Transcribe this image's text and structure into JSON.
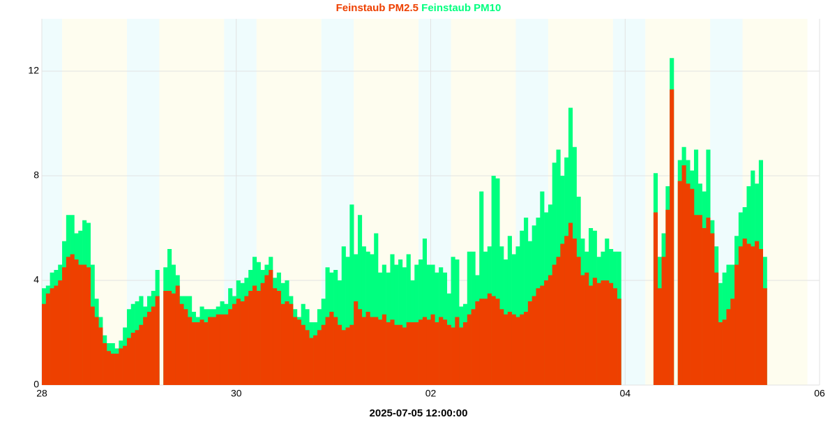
{
  "chart_data": {
    "type": "bar",
    "xlabel": "2025-07-05 12:00:00",
    "xlim": [
      0,
      192
    ],
    "ylim": [
      0,
      14
    ],
    "xticks": [
      {
        "value": 0,
        "label": "28"
      },
      {
        "value": 48,
        "label": "30"
      },
      {
        "value": 96,
        "label": "02"
      },
      {
        "value": 144,
        "label": "04"
      },
      {
        "value": 192,
        "label": "06"
      }
    ],
    "yticks": [
      0,
      4,
      8,
      12
    ],
    "grid": true,
    "x": [
      0,
      1,
      2,
      3,
      4,
      5,
      6,
      7,
      8,
      9,
      10,
      11,
      12,
      13,
      14,
      15,
      16,
      17,
      18,
      19,
      20,
      21,
      22,
      23,
      24,
      25,
      26,
      27,
      28,
      29,
      30,
      31,
      32,
      33,
      34,
      35,
      36,
      37,
      38,
      39,
      40,
      41,
      42,
      43,
      44,
      45,
      46,
      47,
      48,
      49,
      50,
      51,
      52,
      53,
      54,
      55,
      56,
      57,
      58,
      59,
      60,
      61,
      62,
      63,
      64,
      65,
      66,
      67,
      68,
      69,
      70,
      71,
      72,
      73,
      74,
      75,
      76,
      77,
      78,
      79,
      80,
      81,
      82,
      83,
      84,
      85,
      86,
      87,
      88,
      89,
      90,
      91,
      92,
      93,
      94,
      95,
      96,
      97,
      98,
      99,
      100,
      101,
      102,
      103,
      104,
      105,
      106,
      107,
      108,
      109,
      110,
      111,
      112,
      113,
      114,
      115,
      116,
      117,
      118,
      119,
      120,
      121,
      122,
      123,
      124,
      125,
      126,
      127,
      128,
      129,
      130,
      131,
      132,
      133,
      134,
      135,
      136,
      137,
      138,
      139,
      140,
      141,
      142,
      143,
      144,
      145,
      146,
      147,
      148,
      149,
      150,
      151,
      152,
      153,
      154,
      155,
      156,
      157,
      158,
      159,
      160,
      161,
      162,
      163,
      164,
      165,
      166,
      167,
      168,
      169,
      170,
      171,
      172,
      173,
      174,
      175,
      176,
      177,
      178
    ],
    "series": [
      {
        "name": "Feinstaub PM10",
        "color": "#00ff7f",
        "values": [
          3.7,
          3.8,
          4.3,
          4.4,
          4.6,
          5.5,
          6.5,
          6.5,
          5.8,
          5.9,
          6.3,
          6.2,
          4.6,
          3.3,
          2.6,
          1.9,
          1.6,
          1.6,
          1.4,
          1.7,
          2.2,
          2.9,
          3.1,
          3.2,
          3.4,
          3.0,
          3.4,
          3.6,
          4.4,
          null,
          4.5,
          5.2,
          4.6,
          4.2,
          3.4,
          3.4,
          3.4,
          2.8,
          2.6,
          3.0,
          2.9,
          2.9,
          2.9,
          3.0,
          3.2,
          3.1,
          3.7,
          3.4,
          4.0,
          3.9,
          4.1,
          4.4,
          4.9,
          4.7,
          4.4,
          4.6,
          4.9,
          4.1,
          4.3,
          3.9,
          4.0,
          3.4,
          2.9,
          2.6,
          3.1,
          2.9,
          2.4,
          2.4,
          2.9,
          3.3,
          4.5,
          4.3,
          4.4,
          4.0,
          5.3,
          4.9,
          6.9,
          5.0,
          6.5,
          5.3,
          5.1,
          5.0,
          5.8,
          4.3,
          4.6,
          4.3,
          5.0,
          4.6,
          4.8,
          4.5,
          5.0,
          4.0,
          4.6,
          4.8,
          5.6,
          4.6,
          4.6,
          4.3,
          4.5,
          4.3,
          3.5,
          4.9,
          4.8,
          3.0,
          3.1,
          5.1,
          5.1,
          4.2,
          7.4,
          5.1,
          5.3,
          8.0,
          7.9,
          5.3,
          4.8,
          5.7,
          5.0,
          5.3,
          5.9,
          6.4,
          5.5,
          6.1,
          6.4,
          7.4,
          6.6,
          6.9,
          8.5,
          9.0,
          8.0,
          8.7,
          10.6,
          9.1,
          7.2,
          5.6,
          5.1,
          6.0,
          5.9,
          4.9,
          5.1,
          5.6,
          5.2,
          5.1,
          5.1,
          null,
          null,
          null,
          null,
          null,
          null,
          null,
          null,
          8.1,
          4.9,
          5.8,
          7.6,
          12.5,
          null,
          8.6,
          9.1,
          8.6,
          8.2,
          9.0,
          7.7,
          7.4,
          9.0,
          6.3,
          5.3,
          3.9,
          4.3,
          4.6,
          4.6,
          5.7,
          6.6,
          6.8,
          7.6,
          8.2,
          7.7,
          8.6,
          4.9
        ]
      },
      {
        "name": "Feinstaub PM2.5",
        "color": "#ee4000",
        "values": [
          3.1,
          3.5,
          3.7,
          3.8,
          4.0,
          4.5,
          4.9,
          5.0,
          4.8,
          4.6,
          4.6,
          4.5,
          3.0,
          2.6,
          2.2,
          1.6,
          1.3,
          1.2,
          1.2,
          1.4,
          1.5,
          1.8,
          2.0,
          2.1,
          2.3,
          2.6,
          2.8,
          3.0,
          3.4,
          null,
          3.6,
          3.6,
          3.5,
          3.8,
          3.1,
          2.9,
          2.6,
          2.4,
          2.4,
          2.5,
          2.4,
          2.6,
          2.6,
          2.7,
          2.7,
          2.7,
          2.9,
          3.1,
          3.3,
          3.2,
          3.4,
          3.6,
          3.8,
          3.6,
          3.9,
          4.2,
          4.4,
          3.7,
          3.6,
          3.1,
          3.2,
          3.1,
          2.6,
          2.5,
          2.3,
          2.1,
          1.8,
          1.9,
          2.1,
          2.3,
          2.6,
          2.8,
          2.6,
          2.3,
          2.1,
          2.2,
          2.3,
          3.2,
          2.9,
          2.6,
          2.8,
          2.6,
          2.6,
          2.5,
          2.7,
          2.4,
          2.5,
          2.3,
          2.3,
          2.2,
          2.4,
          2.4,
          2.4,
          2.5,
          2.6,
          2.5,
          2.7,
          2.4,
          2.6,
          2.5,
          2.3,
          2.2,
          2.6,
          2.2,
          2.4,
          2.7,
          2.9,
          3.2,
          3.3,
          3.3,
          3.5,
          3.4,
          3.3,
          2.9,
          2.7,
          2.8,
          2.7,
          2.6,
          2.7,
          2.8,
          3.2,
          3.4,
          3.7,
          3.8,
          4.0,
          4.2,
          4.6,
          4.9,
          5.4,
          5.7,
          6.2,
          5.6,
          4.9,
          4.2,
          4.3,
          3.8,
          4.1,
          3.9,
          4.0,
          4.0,
          3.9,
          3.7,
          3.3,
          null,
          null,
          null,
          null,
          null,
          null,
          null,
          null,
          6.6,
          3.7,
          4.9,
          6.7,
          11.3,
          null,
          7.8,
          8.4,
          7.7,
          7.5,
          6.5,
          6.5,
          6.0,
          6.4,
          5.8,
          4.3,
          2.4,
          2.5,
          2.9,
          3.3,
          4.6,
          5.3,
          5.6,
          5.4,
          5.3,
          5.5,
          5.2,
          3.7
        ]
      }
    ]
  }
}
